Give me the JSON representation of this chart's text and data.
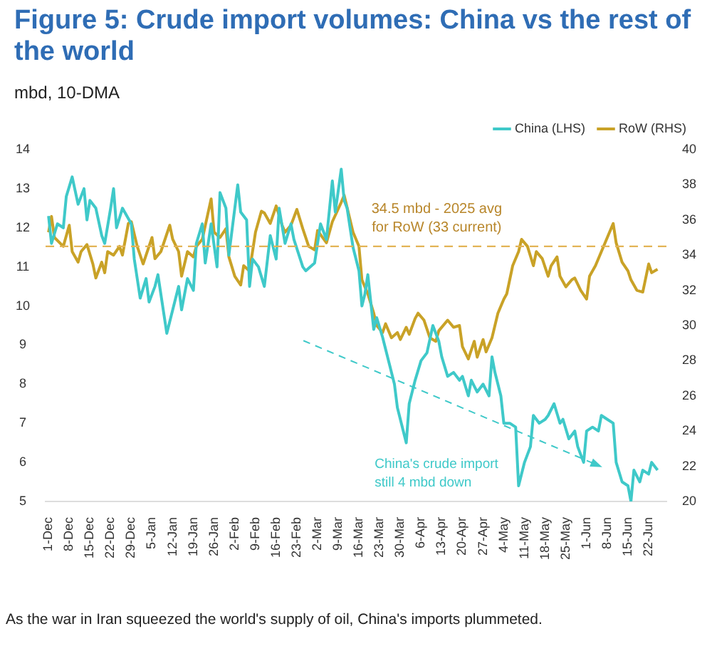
{
  "chart_data": {
    "type": "line",
    "title": "Figure 5: Crude import volumes: China vs the rest of the world",
    "subtitle": "mbd, 10-DMA",
    "annotations": [
      "China's crude import\nstill 4 mbd down",
      "As the war in Iran squeezed the world's supply of oil, China's imports plummeted."
    ],
    "xlim": [
      "2025-11-30",
      "2026-06-28"
    ],
    "xticks": [
      {
        "value": "2025-12-01",
        "label": "1-Dec"
      },
      {
        "value": "2025-12-08",
        "label": "8-Dec"
      },
      {
        "value": "2025-12-15",
        "label": "15-Dec"
      },
      {
        "value": "2025-12-22",
        "label": "22-Dec"
      },
      {
        "value": "2025-12-29",
        "label": "29-Dec"
      },
      {
        "value": "2026-01-05",
        "label": "5-Jan"
      },
      {
        "value": "2026-01-12",
        "label": "12-Jan"
      },
      {
        "value": "2026-01-19",
        "label": "19-Jan"
      },
      {
        "value": "2026-01-26",
        "label": "26-Jan"
      },
      {
        "value": "2026-02-02",
        "label": "2-Feb"
      },
      {
        "value": "2026-02-09",
        "label": "9-Feb"
      },
      {
        "value": "2026-02-16",
        "label": "16-Feb"
      },
      {
        "value": "2026-02-23",
        "label": "23-Feb"
      },
      {
        "value": "2026-03-02",
        "label": "2-Mar"
      },
      {
        "value": "2026-03-09",
        "label": "9-Mar"
      },
      {
        "value": "2026-03-16",
        "label": "16-Mar"
      },
      {
        "value": "2026-03-23",
        "label": "23-Mar"
      },
      {
        "value": "2026-03-30",
        "label": "30-Mar"
      },
      {
        "value": "2026-04-06",
        "label": "6-Apr"
      },
      {
        "value": "2026-04-13",
        "label": "13-Apr"
      },
      {
        "value": "2026-04-20",
        "label": "20-Apr"
      },
      {
        "value": "2026-04-27",
        "label": "27-Apr"
      },
      {
        "value": "2026-05-04",
        "label": "4-May"
      },
      {
        "value": "2026-05-11",
        "label": "11-May"
      },
      {
        "value": "2026-05-18",
        "label": "18-May"
      },
      {
        "value": "2026-05-25",
        "label": "25-May"
      },
      {
        "value": "2026-06-01",
        "label": "1-Jun"
      },
      {
        "value": "2026-06-08",
        "label": "8-Jun"
      },
      {
        "value": "2026-06-15",
        "label": "15-Jun"
      },
      {
        "value": "2026-06-22",
        "label": "22-Jun"
      }
    ],
    "ylim": [
      5,
      14
    ],
    "yticks": [
      5,
      6,
      7,
      8,
      9,
      10,
      11,
      12,
      13,
      14
    ],
    "y2lim": [
      20,
      40
    ],
    "y2ticks": [
      20,
      22,
      24,
      26,
      28,
      30,
      32,
      34,
      36,
      38,
      40
    ],
    "legend": "top right",
    "ref_lines": [
      {
        "axis": "y2",
        "value": 34.5,
        "label": "34.5 mbd - 2025 avg\nfor RoW (33 current)",
        "color": "#e3b456",
        "line_style": "dashed"
      }
    ],
    "series": [
      {
        "name": "China (LHS)",
        "color": "#3fc9c9",
        "axis": "y",
        "x": [
          "2025-12-01",
          "2025-12-02",
          "2025-12-04",
          "2025-12-06",
          "2025-12-07",
          "2025-12-09",
          "2025-12-11",
          "2025-12-13",
          "2025-12-14",
          "2025-12-15",
          "2025-12-17",
          "2025-12-19",
          "2025-12-20",
          "2025-12-22",
          "2025-12-23",
          "2025-12-24",
          "2025-12-26",
          "2025-12-29",
          "2025-12-30",
          "2026-01-01",
          "2026-01-03",
          "2026-01-04",
          "2026-01-06",
          "2026-01-07",
          "2026-01-10",
          "2026-01-11",
          "2026-01-14",
          "2026-01-15",
          "2026-01-17",
          "2026-01-19",
          "2026-01-20",
          "2026-01-22",
          "2026-01-23",
          "2026-01-24",
          "2026-01-25",
          "2026-01-27",
          "2026-01-28",
          "2026-01-30",
          "2026-01-31",
          "2026-02-03",
          "2026-02-04",
          "2026-02-06",
          "2026-02-07",
          "2026-02-08",
          "2026-02-10",
          "2026-02-12",
          "2026-02-14",
          "2026-02-16",
          "2026-02-17",
          "2026-02-19",
          "2026-02-21",
          "2026-02-22",
          "2026-02-25",
          "2026-02-26",
          "2026-03-01",
          "2026-03-03",
          "2026-03-05",
          "2026-03-07",
          "2026-03-08",
          "2026-03-10",
          "2026-03-11",
          "2026-03-12",
          "2026-03-14",
          "2026-03-16",
          "2026-03-17",
          "2026-03-18",
          "2026-03-19",
          "2026-03-21",
          "2026-03-22",
          "2026-03-24",
          "2026-03-25",
          "2026-03-28",
          "2026-03-29",
          "2026-04-01",
          "2026-04-02",
          "2026-04-04",
          "2026-04-06",
          "2026-04-08",
          "2026-04-10",
          "2026-04-12",
          "2026-04-13",
          "2026-04-15",
          "2026-04-17",
          "2026-04-19",
          "2026-04-20",
          "2026-04-22",
          "2026-04-23",
          "2026-04-25",
          "2026-04-27",
          "2026-04-29",
          "2026-04-30",
          "2026-05-01",
          "2026-05-03",
          "2026-05-04",
          "2026-05-06",
          "2026-05-08",
          "2026-05-09",
          "2026-05-11",
          "2026-05-13",
          "2026-05-14",
          "2026-05-16",
          "2026-05-18",
          "2026-05-19",
          "2026-05-21",
          "2026-05-23",
          "2026-05-24",
          "2026-05-26",
          "2026-05-28",
          "2026-05-29",
          "2026-05-31",
          "2026-06-01",
          "2026-06-03",
          "2026-06-05",
          "2026-06-06",
          "2026-06-08",
          "2026-06-10",
          "2026-06-11",
          "2026-06-13",
          "2026-06-15",
          "2026-06-16",
          "2026-06-17",
          "2026-06-19",
          "2026-06-20",
          "2026-06-22",
          "2026-06-23",
          "2026-06-25"
        ],
        "values": [
          12.3,
          11.6,
          12.1,
          12.0,
          12.8,
          13.3,
          12.6,
          13.0,
          12.2,
          12.7,
          12.5,
          11.8,
          11.6,
          12.5,
          13.0,
          12.0,
          12.5,
          12.1,
          11.2,
          10.2,
          10.7,
          10.1,
          10.5,
          10.8,
          9.3,
          9.6,
          10.5,
          9.9,
          10.7,
          10.4,
          11.6,
          12.1,
          11.1,
          11.6,
          12.1,
          11.0,
          12.9,
          12.5,
          11.3,
          13.1,
          12.4,
          12.2,
          10.5,
          11.2,
          11.0,
          10.5,
          11.8,
          11.2,
          12.5,
          11.6,
          12.1,
          11.7,
          11.0,
          10.9,
          11.1,
          12.1,
          11.7,
          13.2,
          12.4,
          13.5,
          12.7,
          12.5,
          11.5,
          10.9,
          10.0,
          10.3,
          10.8,
          9.4,
          9.7,
          9.2,
          8.9,
          8.0,
          7.4,
          6.5,
          7.5,
          8.1,
          8.6,
          8.8,
          9.5,
          9.1,
          8.7,
          8.2,
          8.3,
          8.1,
          8.2,
          7.7,
          8.1,
          7.8,
          8.0,
          7.7,
          8.7,
          8.3,
          7.7,
          7.0,
          7.0,
          6.9,
          5.4,
          6.0,
          6.4,
          7.2,
          7.0,
          7.1,
          7.2,
          7.5,
          7.0,
          7.1,
          6.6,
          6.8,
          6.4,
          6.0,
          6.8,
          6.9,
          6.8,
          7.2,
          7.1,
          7.0,
          6.0,
          5.5,
          5.4,
          5.0,
          5.8,
          5.5,
          5.8,
          5.7,
          6.0,
          5.8
        ]
      },
      {
        "name": "RoW (RHS)",
        "color": "#c9a227",
        "axis": "y2",
        "x": [
          "2025-12-01",
          "2025-12-02",
          "2025-12-03",
          "2025-12-06",
          "2025-12-08",
          "2025-12-09",
          "2025-12-11",
          "2025-12-12",
          "2025-12-14",
          "2025-12-16",
          "2025-12-17",
          "2025-12-19",
          "2025-12-20",
          "2025-12-21",
          "2025-12-23",
          "2025-12-25",
          "2025-12-26",
          "2025-12-28",
          "2025-12-29",
          "2025-12-31",
          "2026-01-02",
          "2026-01-03",
          "2026-01-05",
          "2026-01-06",
          "2026-01-08",
          "2026-01-11",
          "2026-01-12",
          "2026-01-14",
          "2026-01-15",
          "2026-01-17",
          "2026-01-19",
          "2026-01-20",
          "2026-01-22",
          "2026-01-25",
          "2026-01-26",
          "2026-01-28",
          "2026-01-30",
          "2026-01-31",
          "2026-02-02",
          "2026-02-04",
          "2026-02-05",
          "2026-02-07",
          "2026-02-09",
          "2026-02-11",
          "2026-02-12",
          "2026-02-14",
          "2026-02-16",
          "2026-02-18",
          "2026-02-19",
          "2026-02-21",
          "2026-02-23",
          "2026-02-25",
          "2026-02-27",
          "2026-03-01",
          "2026-03-02",
          "2026-03-05",
          "2026-03-07",
          "2026-03-10",
          "2026-03-11",
          "2026-03-14",
          "2026-03-16",
          "2026-03-17",
          "2026-03-19",
          "2026-03-21",
          "2026-03-22",
          "2026-03-24",
          "2026-03-25",
          "2026-03-27",
          "2026-03-29",
          "2026-03-30",
          "2026-04-01",
          "2026-04-02",
          "2026-04-04",
          "2026-04-05",
          "2026-04-07",
          "2026-04-09",
          "2026-04-11",
          "2026-04-12",
          "2026-04-15",
          "2026-04-17",
          "2026-04-19",
          "2026-04-20",
          "2026-04-22",
          "2026-04-24",
          "2026-04-25",
          "2026-04-27",
          "2026-04-28",
          "2026-04-30",
          "2026-05-02",
          "2026-05-04",
          "2026-05-05",
          "2026-05-07",
          "2026-05-09",
          "2026-05-10",
          "2026-05-12",
          "2026-05-14",
          "2026-05-15",
          "2026-05-17",
          "2026-05-19",
          "2026-05-20",
          "2026-05-22",
          "2026-05-23",
          "2026-05-25",
          "2026-05-27",
          "2026-05-28",
          "2026-05-30",
          "2026-06-01",
          "2026-06-02",
          "2026-06-04",
          "2026-06-06",
          "2026-06-08",
          "2026-06-10",
          "2026-06-11",
          "2026-06-13",
          "2026-06-15",
          "2026-06-16",
          "2026-06-18",
          "2026-06-20",
          "2026-06-22",
          "2026-06-23",
          "2026-06-25"
        ],
        "values": [
          35.3,
          36.2,
          35.0,
          34.5,
          35.7,
          34.2,
          33.6,
          34.2,
          34.6,
          33.5,
          32.7,
          33.6,
          33.0,
          34.2,
          34.0,
          34.5,
          34.0,
          35.8,
          35.9,
          34.5,
          33.5,
          34.0,
          35.0,
          33.8,
          34.2,
          35.7,
          34.9,
          34.2,
          32.8,
          34.2,
          33.9,
          34.5,
          34.9,
          37.2,
          35.3,
          35.0,
          35.5,
          33.9,
          32.8,
          32.3,
          33.4,
          33.1,
          35.3,
          36.5,
          36.4,
          35.8,
          36.8,
          35.7,
          35.3,
          35.7,
          36.6,
          35.5,
          34.5,
          34.3,
          35.4,
          34.7,
          35.9,
          37.0,
          37.4,
          35.3,
          34.5,
          32.6,
          31.8,
          30.7,
          30.0,
          29.6,
          30.1,
          29.3,
          29.6,
          29.2,
          29.9,
          29.5,
          30.4,
          30.7,
          30.3,
          29.3,
          29.1,
          29.7,
          30.3,
          29.9,
          30.0,
          28.8,
          28.1,
          29.1,
          28.2,
          29.2,
          28.5,
          29.3,
          30.7,
          31.5,
          31.8,
          33.4,
          34.2,
          34.9,
          34.5,
          33.4,
          34.2,
          33.8,
          32.8,
          33.4,
          33.9,
          32.8,
          32.2,
          32.6,
          32.7,
          32.0,
          31.5,
          32.8,
          33.4,
          34.2,
          35.0,
          35.8,
          34.7,
          33.6,
          33.1,
          32.6,
          32.0,
          31.9,
          33.5,
          33.0,
          33.2
        ]
      }
    ]
  }
}
